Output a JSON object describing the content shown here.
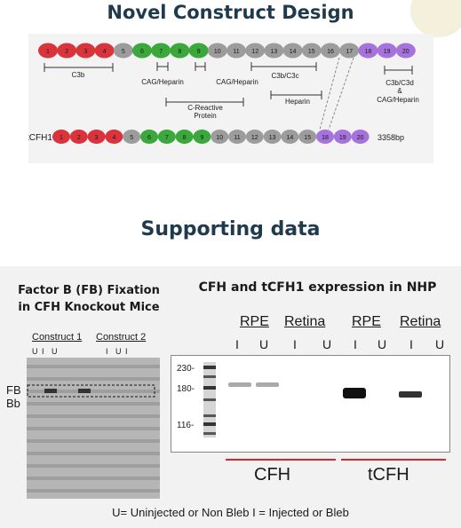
{
  "colors": {
    "red": "#d9343c",
    "gray": "#9c9c9c",
    "green": "#3aa83a",
    "purple": "#a673dd",
    "title": "#1f3a4d",
    "line": "#d9232e"
  },
  "header": {
    "title": "Novel Construct Design"
  },
  "construct_row": {
    "domains": [
      "1",
      "2",
      "3",
      "4",
      "5",
      "6",
      "7",
      "8",
      "9",
      "10",
      "11",
      "12",
      "13",
      "14",
      "15",
      "16",
      "17",
      "18",
      "19",
      "20"
    ],
    "domain_colors": [
      "red",
      "red",
      "red",
      "red",
      "gray",
      "green",
      "green",
      "green",
      "green",
      "gray",
      "gray",
      "gray",
      "gray",
      "gray",
      "gray",
      "gray",
      "gray",
      "purple",
      "purple",
      "purple"
    ]
  },
  "annotations": {
    "c3b": "C3b",
    "cag1": "CAG/Heparin",
    "cag2": "CAG/Heparin",
    "crp": "C-Reactive Protein",
    "c3bc3c": "C3b/C3c",
    "heparin": "Heparin",
    "c3bc3d": "C3b/C3d & CAG/Heparin"
  },
  "tcfh1_row": {
    "label": "tCFH1",
    "domains": [
      "1",
      "2",
      "3",
      "4",
      "5",
      "6",
      "7",
      "8",
      "9",
      "10",
      "11",
      "12",
      "13",
      "14",
      "15",
      "18",
      "19",
      "20"
    ],
    "domain_colors": [
      "red",
      "red",
      "red",
      "red",
      "gray",
      "green",
      "green",
      "green",
      "green",
      "gray",
      "gray",
      "gray",
      "gray",
      "gray",
      "gray",
      "purple",
      "purple",
      "purple"
    ],
    "size": "3358bp"
  },
  "section2": {
    "title": "Supporting data"
  },
  "fb_panel": {
    "title_line1": "Factor B (FB) Fixation",
    "title_line2": "in CFH Knockout Mice",
    "construct1": "Construct 1",
    "construct2": "Construct 2",
    "lane_labels": [
      "U",
      "I",
      "U",
      "I",
      "U",
      "I"
    ],
    "band_fb": "FB",
    "band_bb": "Bb"
  },
  "nhp_panel": {
    "title": "CFH and tCFH1 expression in NHP",
    "groups": [
      "RPE",
      "Retina",
      "RPE",
      "Retina"
    ],
    "lanes": [
      "I",
      "U",
      "I",
      "U",
      "I",
      "U",
      "I",
      "U"
    ],
    "markers": [
      "230-",
      "180-",
      "116-"
    ],
    "cfh_label": "CFH",
    "tcfh_label": "tCFH"
  },
  "footnote": "U= Uninjected or Non Bleb  I = Injected or Bleb"
}
